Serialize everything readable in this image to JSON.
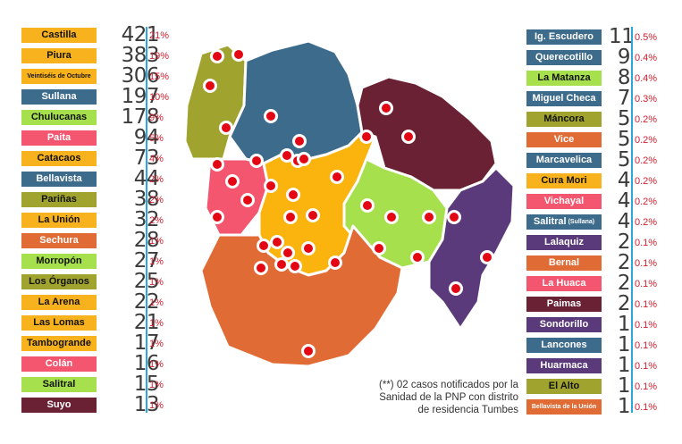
{
  "chart_data": {
    "type": "table",
    "left_list": [
      {
        "name": "Castilla",
        "cases": "421",
        "pct": "21%",
        "color": "#f8b21d"
      },
      {
        "name": "Piura",
        "cases": "383",
        "pct": "19%",
        "color": "#f8b21d"
      },
      {
        "name": "Veintiséis de Octubre",
        "cases": "306",
        "pct": "15%",
        "color": "#f8b21d"
      },
      {
        "name": "Sullana",
        "cases": "197",
        "pct": "10%",
        "color": "#3d6b8c"
      },
      {
        "name": "Chulucanas",
        "cases": "178",
        "pct": "9%",
        "color": "#a6e04c"
      },
      {
        "name": "Paita",
        "cases": "94",
        "pct": "5%",
        "color": "#f4566f"
      },
      {
        "name": "Catacaos",
        "cases": "73",
        "pct": "4%",
        "color": "#f8b21d"
      },
      {
        "name": "Bellavista",
        "cases": "44",
        "pct": "2%",
        "color": "#3d6b8c"
      },
      {
        "name": "Pariñas",
        "cases": "38",
        "pct": "2%",
        "color": "#a0a42e"
      },
      {
        "name": "La Unión",
        "cases": "32",
        "pct": "2%",
        "color": "#f8b21d"
      },
      {
        "name": "Sechura",
        "cases": "28",
        "pct": "1%",
        "color": "#e06b35"
      },
      {
        "name": "Morropón",
        "cases": "27",
        "pct": "1%",
        "color": "#a6e04c"
      },
      {
        "name": "Los Órganos",
        "cases": "25",
        "pct": "1%",
        "color": "#a0a42e"
      },
      {
        "name": "La Arena",
        "cases": "22",
        "pct": "1%",
        "color": "#f8b21d"
      },
      {
        "name": "Las Lomas",
        "cases": "21",
        "pct": "1%",
        "color": "#f8b21d"
      },
      {
        "name": "Tambogrande",
        "cases": "17",
        "pct": "1%",
        "color": "#f8b21d"
      },
      {
        "name": "Colán",
        "cases": "16",
        "pct": "1%",
        "color": "#f4566f"
      },
      {
        "name": "Salitral",
        "cases": "15",
        "pct": "1%",
        "color": "#a6e04c"
      },
      {
        "name": "Suyo",
        "cases": "13",
        "pct": "1%",
        "color": "#6a2134"
      }
    ],
    "right_list": [
      {
        "name": "Ig. Escudero",
        "cases": "11",
        "pct": "0.5%",
        "color": "#3d6b8c"
      },
      {
        "name": "Querecotillo",
        "cases": "9",
        "pct": "0.4%",
        "color": "#3d6b8c"
      },
      {
        "name": "La Matanza",
        "cases": "8",
        "pct": "0.4%",
        "color": "#a6e04c"
      },
      {
        "name": "Miguel Checa",
        "cases": "7",
        "pct": "0.3%",
        "color": "#3d6b8c"
      },
      {
        "name": "Máncora",
        "cases": "5",
        "pct": "0.2%",
        "color": "#a0a42e"
      },
      {
        "name": "Vice",
        "cases": "5",
        "pct": "0.2%",
        "color": "#e06b35"
      },
      {
        "name": "Marcavelica",
        "cases": "5",
        "pct": "0.2%",
        "color": "#3d6b8c"
      },
      {
        "name": "Cura Mori",
        "cases": "4",
        "pct": "0.2%",
        "color": "#f8b21d"
      },
      {
        "name": "Vichayal",
        "cases": "4",
        "pct": "0.2%",
        "color": "#f4566f"
      },
      {
        "name": "Salitral",
        "suffix": "(Sullana)",
        "cases": "4",
        "pct": "0.2%",
        "color": "#3d6b8c"
      },
      {
        "name": "Lalaquiz",
        "cases": "2",
        "pct": "0.1%",
        "color": "#5a3a7a"
      },
      {
        "name": "Bernal",
        "cases": "2",
        "pct": "0.1%",
        "color": "#e06b35"
      },
      {
        "name": "La Huaca",
        "cases": "2",
        "pct": "0.1%",
        "color": "#f4566f"
      },
      {
        "name": "Paimas",
        "cases": "2",
        "pct": "0.1%",
        "color": "#6a2134"
      },
      {
        "name": "Sondorillo",
        "cases": "1",
        "pct": "0.1%",
        "color": "#5a3a7a"
      },
      {
        "name": "Lancones",
        "cases": "1",
        "pct": "0.1%",
        "color": "#3d6b8c"
      },
      {
        "name": "Huarmaca",
        "cases": "1",
        "pct": "0.1%",
        "color": "#5a3a7a"
      },
      {
        "name": "El Alto",
        "cases": "1",
        "pct": "0.1%",
        "color": "#a0a42e"
      },
      {
        "name": "Bellavista de la Unión",
        "cases": "1",
        "pct": "0.1%",
        "color": "#e06b35"
      }
    ],
    "note": [
      "(**) 02 casos notificados por la",
      "Sanidad de la PNP con distrito",
      "de residencia Tumbes"
    ],
    "accent_line_color": "#2aa8dc",
    "pct_color": "#d2202f",
    "marker_color": "#e30613"
  }
}
